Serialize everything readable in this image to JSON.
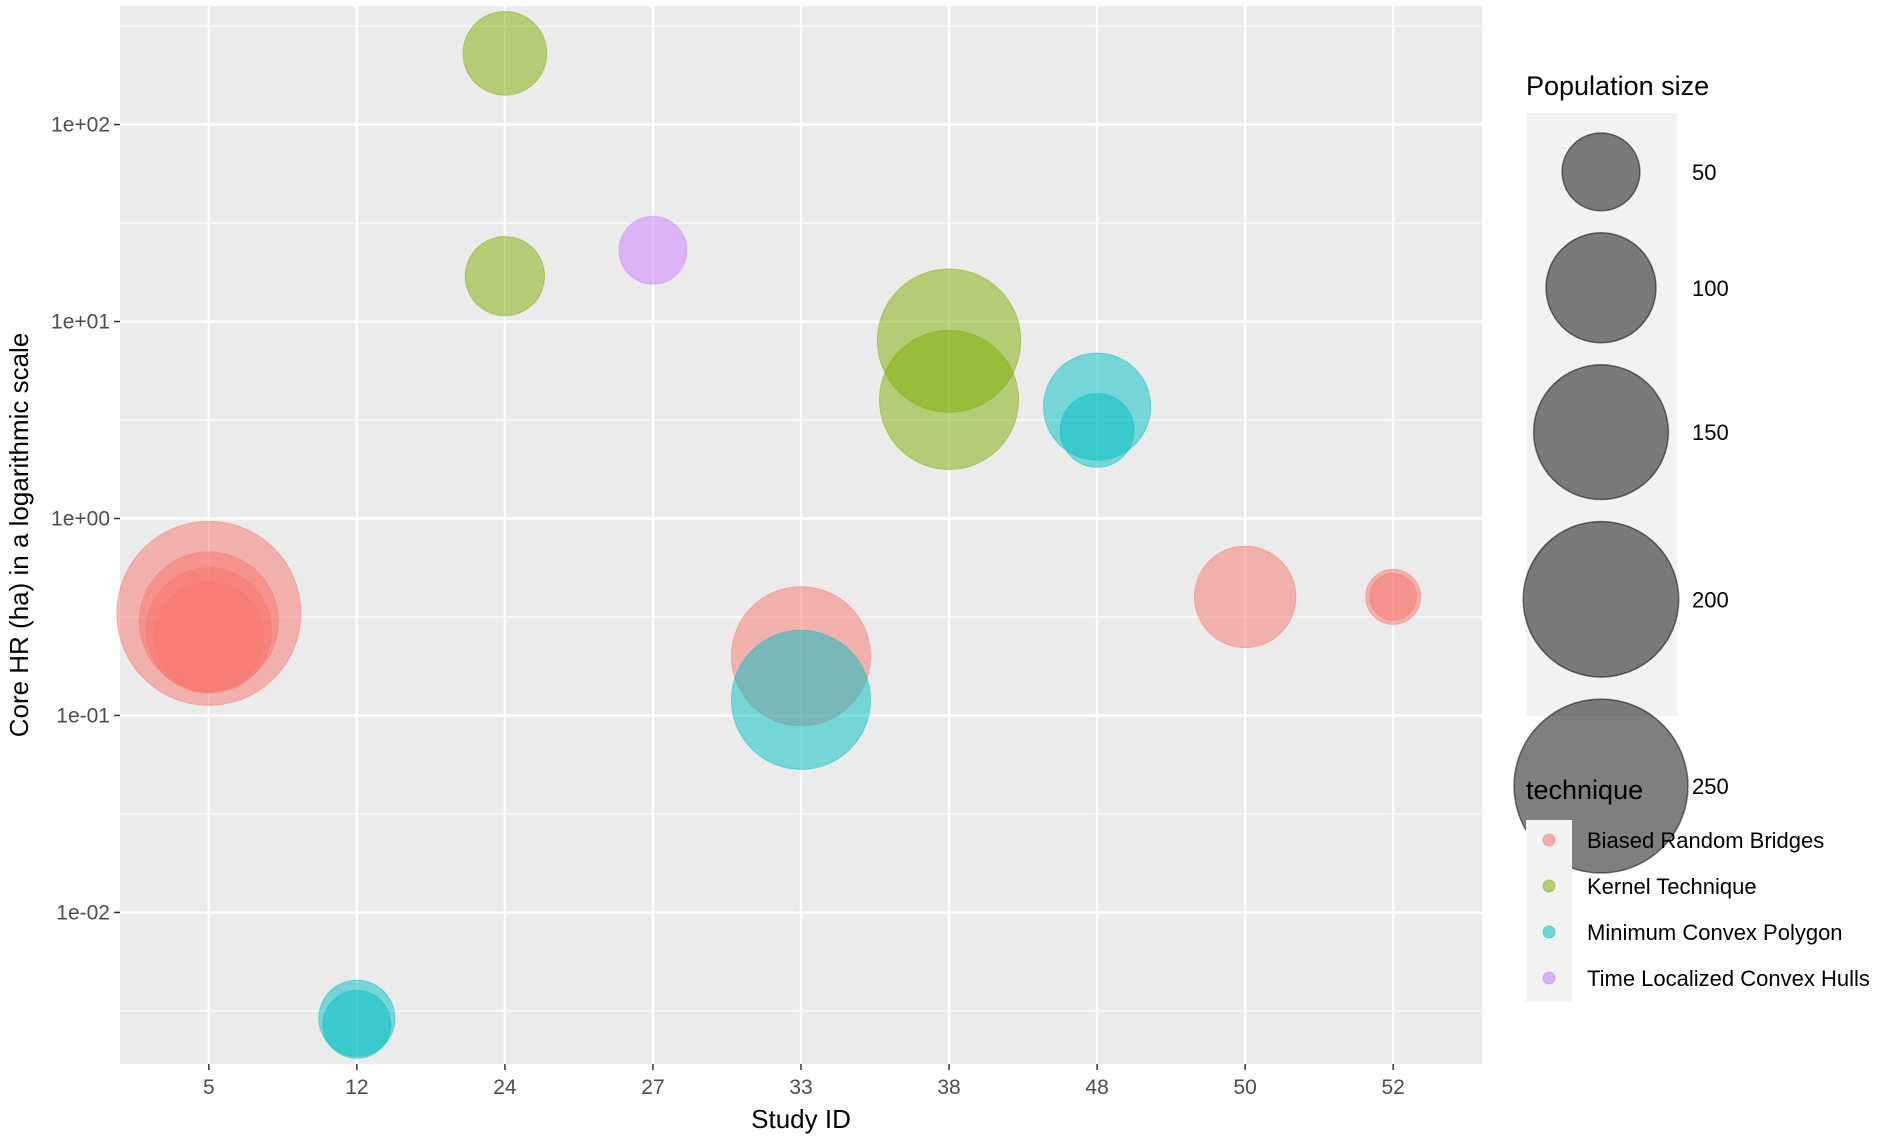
{
  "chart_data": {
    "type": "scatter",
    "title": "",
    "xlabel": "Study ID",
    "ylabel": "Core HR (ha) in a logarithmic scale",
    "x_scale": "categorical",
    "y_scale": "log10",
    "categories": [
      "5",
      "12",
      "24",
      "27",
      "33",
      "38",
      "48",
      "50",
      "52"
    ],
    "y_ticks": [
      {
        "value": 0.01,
        "label": "1e-02"
      },
      {
        "value": 0.1,
        "label": "1e-01"
      },
      {
        "value": 1,
        "label": "1e+00"
      },
      {
        "value": 10,
        "label": "1e+01"
      },
      {
        "value": 100,
        "label": "1e+02"
      }
    ],
    "ylim": [
      0.0017,
      400
    ],
    "grid": true,
    "colors": {
      "Biased Random Bridges": "#F8766D",
      "Kernel Technique": "#7CAE00",
      "Minimum Convex Polygon": "#00BFC4",
      "Time Localized Convex Hulls": "#C77CFF"
    },
    "size_legend": {
      "title": "Population size",
      "entries": [
        {
          "value": 50,
          "label": "50"
        },
        {
          "value": 100,
          "label": "100"
        },
        {
          "value": 150,
          "label": "150"
        },
        {
          "value": 200,
          "label": "200"
        },
        {
          "value": 250,
          "label": "250"
        }
      ]
    },
    "color_legend": {
      "title": "technique",
      "entries": [
        "Biased Random Bridges",
        "Kernel Technique",
        "Minimum Convex Polygon",
        "Time Localized Convex Hulls"
      ]
    },
    "legend_position": "right",
    "points": [
      {
        "study": "5",
        "hr": 0.33,
        "pop": 280,
        "technique": "Biased Random Bridges"
      },
      {
        "study": "5",
        "hr": 0.3,
        "pop": 160,
        "technique": "Biased Random Bridges"
      },
      {
        "study": "5",
        "hr": 0.27,
        "pop": 130,
        "technique": "Biased Random Bridges"
      },
      {
        "study": "5",
        "hr": 0.25,
        "pop": 100,
        "technique": "Biased Random Bridges"
      },
      {
        "study": "12",
        "hr": 0.0029,
        "pop": 48,
        "technique": "Minimum Convex Polygon"
      },
      {
        "study": "12",
        "hr": 0.0027,
        "pop": 38,
        "technique": "Minimum Convex Polygon"
      },
      {
        "study": "24",
        "hr": 230,
        "pop": 58,
        "technique": "Kernel Technique"
      },
      {
        "study": "24",
        "hr": 17,
        "pop": 52,
        "technique": "Kernel Technique"
      },
      {
        "study": "27",
        "hr": 23,
        "pop": 38,
        "technique": "Time Localized Convex Hulls"
      },
      {
        "study": "33",
        "hr": 0.2,
        "pop": 160,
        "technique": "Biased Random Bridges"
      },
      {
        "study": "33",
        "hr": 0.12,
        "pop": 160,
        "technique": "Minimum Convex Polygon"
      },
      {
        "study": "38",
        "hr": 8,
        "pop": 170,
        "technique": "Kernel Technique"
      },
      {
        "study": "38",
        "hr": 4,
        "pop": 160,
        "technique": "Kernel Technique"
      },
      {
        "study": "48",
        "hr": 3.7,
        "pop": 95,
        "technique": "Minimum Convex Polygon"
      },
      {
        "study": "48",
        "hr": 2.8,
        "pop": 45,
        "technique": "Minimum Convex Polygon"
      },
      {
        "study": "50",
        "hr": 0.4,
        "pop": 85,
        "technique": "Biased Random Bridges"
      },
      {
        "study": "52",
        "hr": 0.4,
        "pop": 25,
        "technique": "Biased Random Bridges"
      },
      {
        "study": "52",
        "hr": 0.4,
        "pop": 18,
        "technique": "Biased Random Bridges"
      }
    ]
  }
}
